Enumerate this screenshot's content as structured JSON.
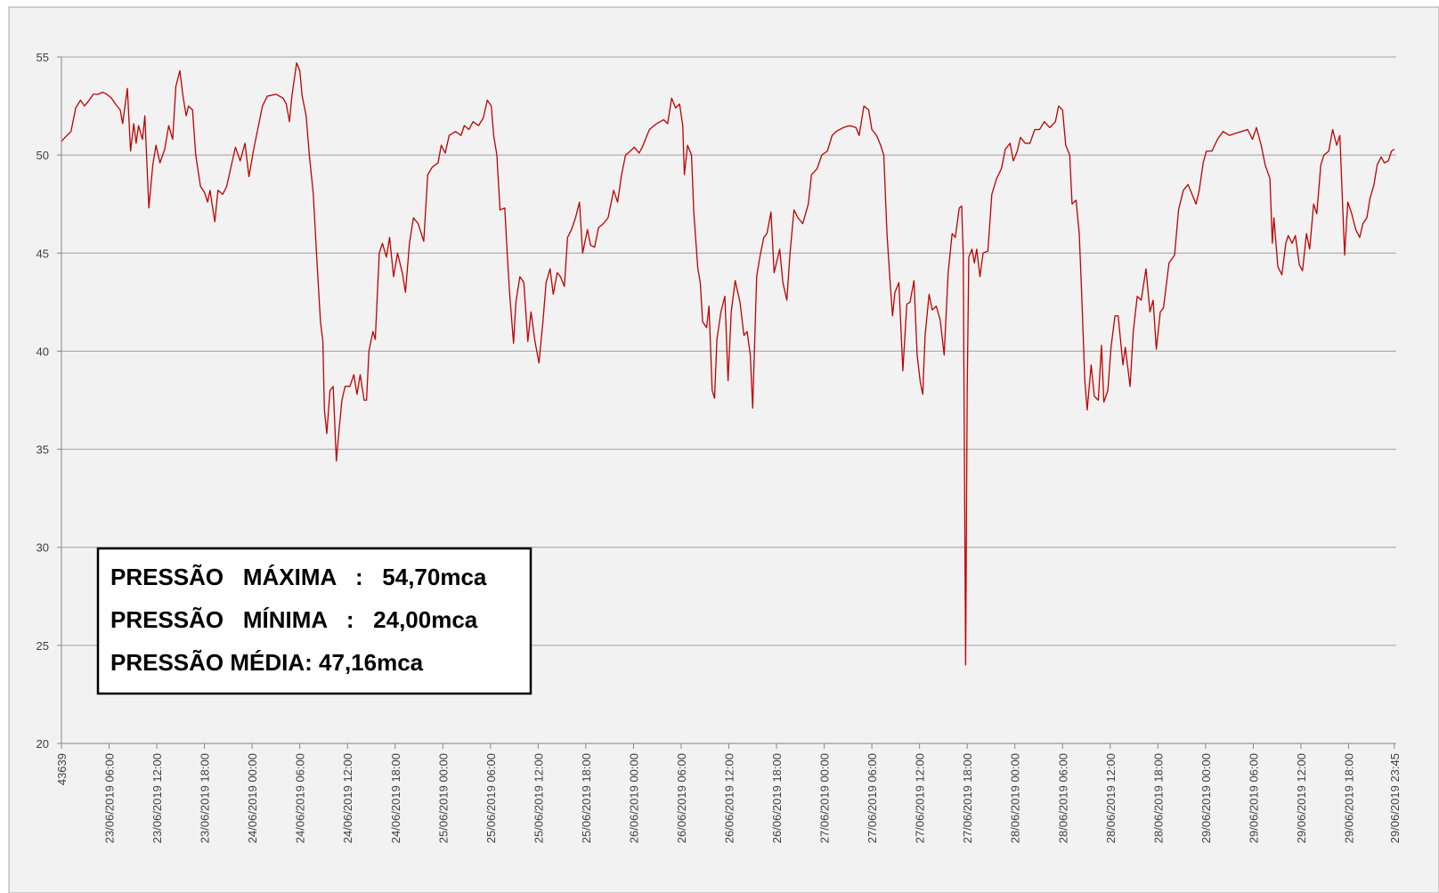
{
  "chart_data": {
    "type": "line",
    "annotations": [
      "PRESSÃO   MÁXIMA   :   54,70mca",
      "PRESSÃO   MÍNIMA   :   24,00mca",
      "PRESSÃO MÉDIA: 47,16mca"
    ],
    "ylim": [
      20,
      55
    ],
    "yticks": [
      20,
      25,
      30,
      35,
      40,
      45,
      50,
      55
    ],
    "grid": true,
    "xlim": [
      0,
      168
    ],
    "xticks": [
      {
        "value": 0,
        "label": "43639"
      },
      {
        "value": 6,
        "label": "23/06/2019 06:00"
      },
      {
        "value": 12,
        "label": "23/06/2019 12:00"
      },
      {
        "value": 18,
        "label": "23/06/2019 18:00"
      },
      {
        "value": 24,
        "label": "24/06/2019 00:00"
      },
      {
        "value": 30,
        "label": "24/06/2019 06:00"
      },
      {
        "value": 36,
        "label": "24/06/2019 12:00"
      },
      {
        "value": 42,
        "label": "24/06/2019 18:00"
      },
      {
        "value": 48,
        "label": "25/06/2019 00:00"
      },
      {
        "value": 54,
        "label": "25/06/2019 06:00"
      },
      {
        "value": 60,
        "label": "25/06/2019 12:00"
      },
      {
        "value": 66,
        "label": "25/06/2019 18:00"
      },
      {
        "value": 72,
        "label": "26/06/2019 00:00"
      },
      {
        "value": 78,
        "label": "26/06/2019 06:00"
      },
      {
        "value": 84,
        "label": "26/06/2019 12:00"
      },
      {
        "value": 90,
        "label": "26/06/2019 18:00"
      },
      {
        "value": 96,
        "label": "27/06/2019 00:00"
      },
      {
        "value": 102,
        "label": "27/06/2019 06:00"
      },
      {
        "value": 108,
        "label": "27/06/2019 12:00"
      },
      {
        "value": 114,
        "label": "27/06/2019 18:00"
      },
      {
        "value": 120,
        "label": "28/06/2019 00:00"
      },
      {
        "value": 126,
        "label": "28/06/2019 06:00"
      },
      {
        "value": 132,
        "label": "28/06/2019 12:00"
      },
      {
        "value": 138,
        "label": "28/06/2019 18:00"
      },
      {
        "value": 144,
        "label": "29/06/2019 00:00"
      },
      {
        "value": 150,
        "label": "29/06/2019 06:00"
      },
      {
        "value": 156,
        "label": "29/06/2019 12:00"
      },
      {
        "value": 162,
        "label": "29/06/2019 18:00"
      },
      {
        "value": 167.75,
        "label": "29/06/2019 23:45"
      }
    ],
    "x": [
      0,
      0.7,
      1.2,
      1.8,
      2.4,
      2.9,
      3.5,
      4.0,
      4.6,
      5.2,
      5.7,
      6.3,
      6.8,
      7.4,
      7.7,
      8.3,
      8.7,
      9.1,
      9.4,
      9.7,
      10.2,
      10.5,
      11.0,
      11.5,
      11.9,
      12.4,
      13.0,
      13.5,
      14.0,
      14.4,
      14.9,
      15.3,
      15.7,
      16.0,
      16.5,
      16.9,
      17.5,
      18.0,
      18.4,
      18.7,
      19.3,
      19.7,
      20.3,
      20.8,
      21.4,
      21.9,
      22.5,
      23.1,
      23.6,
      24.2,
      24.7,
      25.3,
      25.9,
      27.0,
      27.9,
      28.3,
      28.7,
      29.0,
      29.6,
      30.0,
      30.3,
      30.8,
      31.2,
      31.7,
      32.1,
      32.6,
      32.9,
      33.1,
      33.4,
      33.8,
      34.2,
      34.6,
      34.9,
      35.3,
      35.7,
      36.3,
      36.8,
      37.2,
      37.6,
      38.1,
      38.4,
      38.7,
      39.2,
      39.5,
      40.0,
      40.4,
      40.9,
      41.3,
      41.8,
      42.3,
      42.9,
      43.3,
      43.8,
      44.3,
      44.9,
      45.6,
      46.1,
      46.7,
      47.4,
      47.8,
      48.3,
      48.8,
      49.6,
      50.3,
      50.7,
      51.3,
      51.8,
      52.5,
      53.1,
      53.6,
      54.1,
      54.4,
      54.8,
      55.2,
      55.8,
      56.1,
      56.4,
      56.9,
      57.2,
      57.7,
      58.2,
      58.7,
      59.1,
      59.6,
      60.1,
      60.6,
      61.0,
      61.5,
      61.9,
      62.4,
      62.8,
      63.3,
      63.7,
      64.2,
      64.7,
      65.2,
      65.6,
      66.2,
      66.6,
      67.1,
      67.6,
      68.2,
      68.8,
      69.5,
      70.0,
      70.5,
      71.0,
      71.6,
      72.1,
      72.7,
      73.1,
      74.0,
      74.9,
      75.8,
      76.3,
      76.8,
      77.3,
      77.8,
      78.2,
      78.4,
      78.8,
      79.3,
      79.6,
      80.1,
      80.4,
      80.7,
      81.2,
      81.5,
      81.9,
      82.2,
      82.5,
      83.0,
      83.5,
      83.9,
      84.3,
      84.8,
      85.4,
      85.9,
      86.3,
      86.7,
      87.0,
      87.5,
      87.9,
      88.4,
      88.8,
      89.3,
      89.7,
      90.4,
      90.8,
      91.3,
      91.7,
      92.2,
      92.7,
      93.3,
      94.0,
      94.4,
      95.1,
      95.7,
      96.4,
      97.0,
      97.5,
      98.4,
      99.2,
      100.0,
      100.4,
      101.0,
      101.6,
      102.0,
      102.6,
      103.1,
      103.5,
      103.9,
      104.3,
      104.6,
      104.9,
      105.4,
      105.9,
      106.4,
      106.8,
      107.3,
      107.7,
      108.1,
      108.4,
      108.7,
      109.2,
      109.6,
      110.1,
      110.6,
      111.1,
      111.6,
      112.1,
      112.5,
      113.0,
      113.3,
      113.5,
      113.8,
      114.0,
      114.2,
      114.6,
      114.9,
      115.2,
      115.6,
      116.0,
      116.6,
      117.1,
      117.7,
      118.3,
      118.8,
      119.4,
      119.8,
      120.3,
      120.7,
      121.3,
      121.9,
      122.5,
      123.1,
      123.7,
      124.4,
      125.1,
      125.5,
      126.0,
      126.4,
      126.9,
      127.2,
      127.7,
      128.1,
      128.4,
      128.8,
      129.1,
      129.6,
      130.0,
      130.5,
      130.9,
      131.2,
      131.7,
      132.1,
      132.6,
      133.0,
      133.6,
      133.9,
      134.5,
      134.9,
      135.4,
      135.9,
      136.5,
      137.0,
      137.4,
      137.8,
      138.3,
      138.7,
      139.4,
      140.1,
      140.6,
      141.2,
      141.8,
      142.3,
      142.8,
      143.2,
      143.7,
      144.1,
      144.8,
      145.5,
      146.2,
      147.0,
      147.7,
      148.5,
      149.3,
      149.9,
      150.4,
      151.0,
      151.5,
      152.1,
      152.4,
      152.6,
      153.1,
      153.6,
      154.1,
      154.4,
      154.9,
      155.3,
      155.8,
      156.2,
      156.7,
      157.1,
      157.6,
      158.0,
      158.5,
      158.9,
      159.5,
      160.0,
      160.5,
      160.9,
      161.5,
      161.9,
      162.4,
      162.9,
      163.4,
      163.8,
      164.3,
      164.7,
      165.2,
      165.6,
      166.1,
      166.5,
      167.0,
      167.4,
      167.75
    ],
    "series": [
      {
        "color": "#c00000",
        "values": [
          50.7,
          51.0,
          51.2,
          52.4,
          52.8,
          52.5,
          52.8,
          53.1,
          53.1,
          53.2,
          53.1,
          52.9,
          52.6,
          52.3,
          51.6,
          53.4,
          50.2,
          51.6,
          50.6,
          51.5,
          50.8,
          52.0,
          47.3,
          49.5,
          50.5,
          49.6,
          50.3,
          51.5,
          50.8,
          53.5,
          54.3,
          53.0,
          52.0,
          52.5,
          52.3,
          50.0,
          48.4,
          48.1,
          47.6,
          48.2,
          46.6,
          48.2,
          48.0,
          48.4,
          49.5,
          50.4,
          49.7,
          50.6,
          48.9,
          50.3,
          51.3,
          52.5,
          53.0,
          53.1,
          52.9,
          52.6,
          51.7,
          53.0,
          54.7,
          54.3,
          53.0,
          52.0,
          50.0,
          48.0,
          45.0,
          41.5,
          40.5,
          37.0,
          35.8,
          38.0,
          38.2,
          34.4,
          35.8,
          37.5,
          38.2,
          38.2,
          38.8,
          37.8,
          38.8,
          37.5,
          37.5,
          40.0,
          41.0,
          40.6,
          45.0,
          45.5,
          44.8,
          45.8,
          43.8,
          45.0,
          44.0,
          43.0,
          45.5,
          46.8,
          46.5,
          45.6,
          49.0,
          49.4,
          49.6,
          50.5,
          50.1,
          51.0,
          51.2,
          51.0,
          51.5,
          51.3,
          51.7,
          51.5,
          51.9,
          52.8,
          52.5,
          51.0,
          50.0,
          47.2,
          47.3,
          45.0,
          43.0,
          40.4,
          42.5,
          43.8,
          43.5,
          40.5,
          42.0,
          40.5,
          39.4,
          41.5,
          43.5,
          44.2,
          42.9,
          44.0,
          43.8,
          43.3,
          45.8,
          46.2,
          46.8,
          47.6,
          45.0,
          46.2,
          45.4,
          45.3,
          46.3,
          46.5,
          46.8,
          48.2,
          47.6,
          49.0,
          50.0,
          50.2,
          50.4,
          50.1,
          50.4,
          51.3,
          51.6,
          51.8,
          51.6,
          52.9,
          52.4,
          52.6,
          51.5,
          49.0,
          50.5,
          50.0,
          47.0,
          44.2,
          43.5,
          41.5,
          41.2,
          42.3,
          38.0,
          37.6,
          40.6,
          42.0,
          42.8,
          38.5,
          42.0,
          43.6,
          42.5,
          40.8,
          41.0,
          39.8,
          37.1,
          43.8,
          44.8,
          45.8,
          46.0,
          47.1,
          44.0,
          45.2,
          43.5,
          42.6,
          45.0,
          47.2,
          46.8,
          46.5,
          47.5,
          49.0,
          49.3,
          50.0,
          50.2,
          51.0,
          51.2,
          51.4,
          51.5,
          51.4,
          51.0,
          52.5,
          52.3,
          51.3,
          51.0,
          50.5,
          50.0,
          46.0,
          43.5,
          41.8,
          43.0,
          43.5,
          39.0,
          42.4,
          42.5,
          43.6,
          39.8,
          38.4,
          37.8,
          40.8,
          42.9,
          42.1,
          42.3,
          41.6,
          39.8,
          44.0,
          46.0,
          45.8,
          47.3,
          47.4,
          45.0,
          24.0,
          38.0,
          44.8,
          45.2,
          44.5,
          45.2,
          43.8,
          45.0,
          45.1,
          48.0,
          48.8,
          49.3,
          50.3,
          50.6,
          49.7,
          50.2,
          50.9,
          50.6,
          50.6,
          51.3,
          51.3,
          51.7,
          51.4,
          51.7,
          52.5,
          52.3,
          50.5,
          50.0,
          47.5,
          47.7,
          46.0,
          43.0,
          38.5,
          37.0,
          39.3,
          37.7,
          37.5,
          40.3,
          37.4,
          38.0,
          40.2,
          41.8,
          41.8,
          39.3,
          40.2,
          38.2,
          41.0,
          42.8,
          42.6,
          44.2,
          42.0,
          42.6,
          40.1,
          42.0,
          42.2,
          44.5,
          44.9,
          47.2,
          48.2,
          48.5,
          48.0,
          47.5,
          48.2,
          49.6,
          50.2,
          50.2,
          50.8,
          51.2,
          51.0,
          51.1,
          51.2,
          51.3,
          50.8,
          51.4,
          50.5,
          49.5,
          48.8,
          45.5,
          46.8,
          44.3,
          43.9,
          45.5,
          45.9,
          45.5,
          45.9,
          44.4,
          44.1,
          46.0,
          45.2,
          47.5,
          47.0,
          49.5,
          50.0,
          50.2,
          51.3,
          50.5,
          51.0,
          44.9,
          47.6,
          47.0,
          46.2,
          45.8,
          46.5,
          46.8,
          47.8,
          48.5,
          49.5,
          49.9,
          49.6,
          49.7,
          50.2,
          50.3
        ]
      }
    ]
  }
}
